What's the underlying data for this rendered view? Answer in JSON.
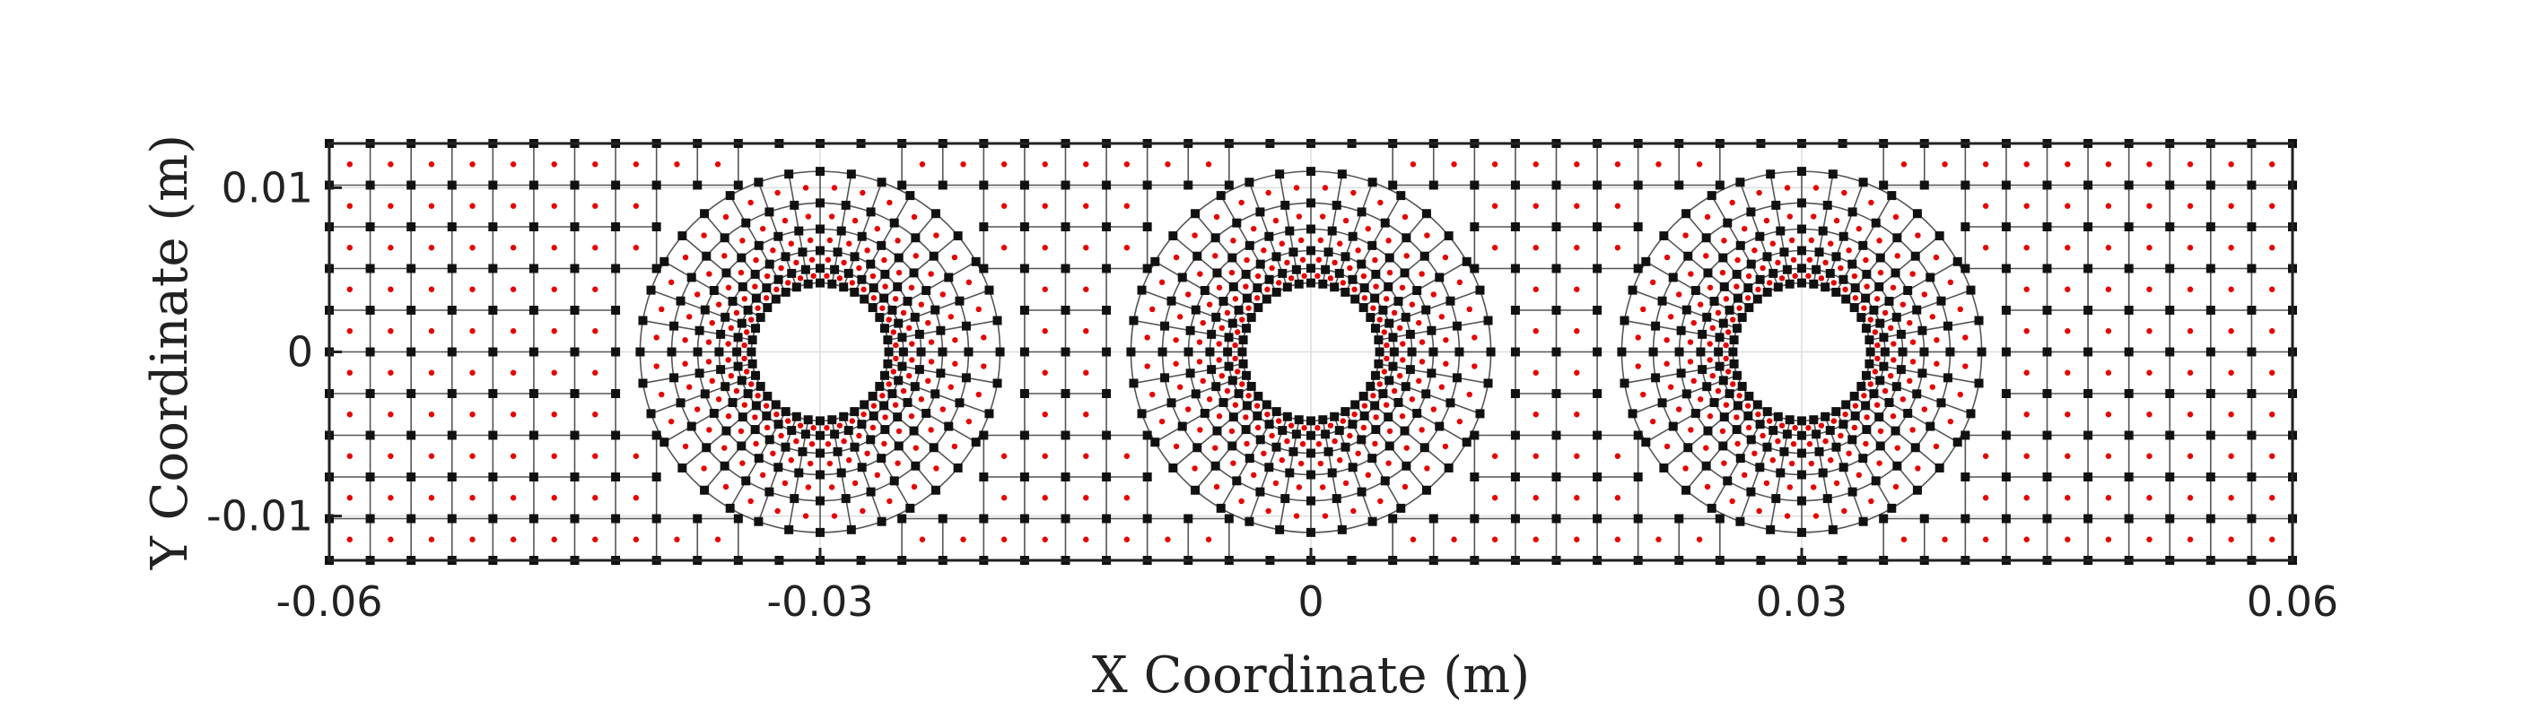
{
  "chart_data": {
    "type": "scatter",
    "title": "",
    "xlabel": "X Coordinate (m)",
    "ylabel": "Y Coordinate (m)",
    "xlim": [
      -0.06,
      0.06
    ],
    "ylim": [
      -0.0127,
      0.0127
    ],
    "x_ticks": [
      -0.06,
      -0.03,
      0,
      0.03,
      0.06
    ],
    "x_tick_labels": [
      "-0.06",
      "-0.03",
      "0",
      "0.03",
      "0.06"
    ],
    "y_ticks": [
      -0.01,
      0,
      0.01
    ],
    "y_tick_labels": [
      "-0.01",
      "0",
      "0.01"
    ],
    "grid": true,
    "holes": [
      {
        "cx": -0.03,
        "cy": 0,
        "r": 0.0042
      },
      {
        "cx": 0,
        "cy": 0,
        "r": 0.0042
      },
      {
        "cx": 0.03,
        "cy": 0,
        "r": 0.0042
      }
    ],
    "mesh": {
      "grid_spacing_x": 0.0025,
      "grid_spacing_y": 0.0025,
      "outer_transition_radius": 0.011,
      "radial_layers": 5,
      "nodes_per_ring": 36
    },
    "series": [
      {
        "marker": "square",
        "color": "#111111"
      },
      {
        "marker": "dot",
        "color": "#e60000"
      }
    ]
  }
}
